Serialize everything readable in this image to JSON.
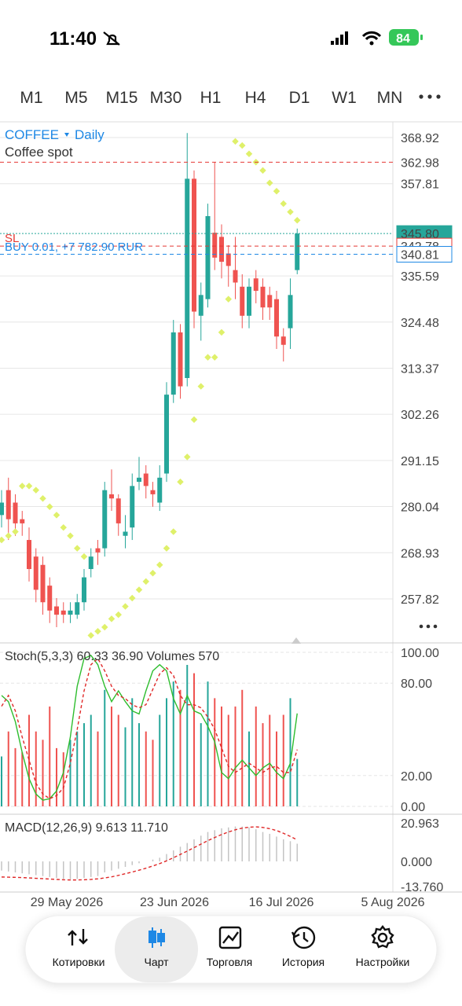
{
  "status_bar": {
    "time": "11:40",
    "battery": "84"
  },
  "timeframes": [
    "M1",
    "M5",
    "M15",
    "M30",
    "H1",
    "H4",
    "D1",
    "W1",
    "MN"
  ],
  "active_timeframe": "D1",
  "chart_data": [
    {
      "type": "candlestick",
      "symbol": "COFFEE",
      "period": "Daily",
      "description": "Coffee spot",
      "up_color": "#26a69a",
      "down_color": "#ef5350",
      "open": [
        278,
        284,
        281,
        277,
        272,
        268,
        266,
        261,
        256,
        255,
        254,
        254,
        257,
        265,
        270,
        270,
        283,
        282,
        273,
        275,
        286,
        288,
        284,
        281,
        288,
        307,
        322,
        311,
        359,
        326,
        330,
        346,
        345,
        341,
        337,
        333,
        326,
        335,
        333,
        331,
        330,
        321,
        323,
        337
      ],
      "high": [
        284,
        287,
        283,
        279,
        275,
        270,
        268,
        263,
        258,
        257,
        257,
        259,
        265,
        270,
        272,
        286,
        289,
        283,
        278,
        288,
        292,
        290,
        286,
        290,
        310,
        325,
        324,
        370,
        361,
        334,
        353,
        363,
        348,
        343,
        345,
        336,
        335,
        337,
        335,
        333,
        332,
        323,
        335,
        347
      ],
      "low": [
        275,
        272,
        273,
        273,
        262,
        257,
        254,
        252,
        251,
        252,
        252,
        253,
        255,
        263,
        266,
        268,
        279,
        273,
        270,
        272,
        284,
        282,
        280,
        279,
        286,
        305,
        306,
        309,
        323,
        320,
        328,
        337,
        335,
        333,
        330,
        323,
        323,
        329,
        325,
        325,
        318,
        315,
        318,
        336
      ],
      "close": [
        281,
        277,
        276,
        276,
        265,
        260,
        257,
        255,
        254,
        254,
        255,
        257,
        263,
        268,
        269,
        284,
        282,
        276,
        274,
        285,
        287,
        285,
        283,
        287,
        307,
        322,
        309,
        359,
        327,
        331,
        350,
        340,
        339,
        338,
        334,
        326,
        333,
        332,
        328,
        328,
        321,
        319,
        331,
        345.8
      ],
      "sar": {
        "color": "#dff06a",
        "values": [
          272,
          273,
          274,
          285,
          285,
          284,
          282,
          280,
          278,
          275,
          273,
          270,
          268,
          249,
          250,
          251,
          253,
          254,
          256,
          258,
          260,
          262,
          264,
          266,
          270,
          274,
          286,
          292,
          301,
          309,
          316,
          316,
          322,
          330,
          368,
          367,
          365,
          363,
          361,
          358,
          356,
          353,
          351,
          349
        ]
      },
      "ylim": [
        247.21,
        372.33
      ],
      "yticks": [
        368.92,
        357.81,
        335.59,
        324.48,
        313.37,
        302.26,
        291.15,
        280.04,
        268.93,
        257.82
      ],
      "grid": true,
      "price_lines": [
        {
          "price": 362.98,
          "color": "#e53935",
          "boxed": false
        },
        {
          "price": {
            "value": 345.8,
            "label": "345.80"
          },
          "color": "#26a69a",
          "boxed": true
        },
        {
          "price": 342.78,
          "color": "#e53935",
          "boxed": true
        },
        {
          "price": 340.81,
          "color": "#1e88e5",
          "boxed": true
        }
      ],
      "sl_text": "SL",
      "buy_text": "BUY 0.01, +7 782.90 RUR",
      "date_labels": [
        "29 May 2026",
        "23 Jun 2026",
        "16 Jul 2026",
        "5 Aug 2026"
      ]
    },
    {
      "type": "stochastic",
      "title": "Stoch(5,3,3)",
      "main_value": 60.33,
      "signal_value": {
        "value": 36.9,
        "label": "36.90"
      },
      "volumes_title": "Volumes",
      "volume_value": 570,
      "ylim": [
        -5.1,
        106.12
      ],
      "yticks": [
        {
          "value": 100,
          "label": "100.00"
        },
        {
          "value": 80,
          "label": "80.00"
        },
        {
          "value": 20,
          "label": "20.00"
        },
        {
          "value": 0,
          "label": "0.00"
        }
      ],
      "series": [
        {
          "name": "Main",
          "color": "#2ebd2e",
          "values": [
            72,
            68,
            55,
            35,
            18,
            8,
            4,
            5,
            10,
            22,
            45,
            78,
            96,
            98,
            92,
            78,
            68,
            75,
            68,
            62,
            60,
            75,
            88,
            92,
            88,
            70,
            60,
            72,
            62,
            60,
            52,
            42,
            22,
            18,
            25,
            30,
            25,
            20,
            25,
            28,
            22,
            18,
            28,
            60.33
          ]
        },
        {
          "name": "Signal",
          "color": "#e02828",
          "values": [
            65,
            72,
            62,
            45,
            30,
            15,
            8,
            5,
            7,
            12,
            28,
            50,
            75,
            92,
            96,
            88,
            78,
            72,
            70,
            66,
            64,
            66,
            76,
            86,
            90,
            85,
            72,
            66,
            66,
            64,
            58,
            50,
            38,
            26,
            22,
            25,
            28,
            25,
            22,
            25,
            26,
            22,
            22,
            36.9
          ]
        }
      ],
      "volumes": [
        600,
        900,
        700,
        650,
        1100,
        900,
        800,
        1200,
        700,
        650,
        800,
        900,
        1000,
        1100,
        900,
        1400,
        1200,
        1100,
        950,
        1300,
        1000,
        900,
        800,
        1100,
        1300,
        1500,
        1400,
        1700,
        1600,
        1000,
        1500,
        1300,
        1200,
        1100,
        1200,
        1400,
        900,
        1200,
        1000,
        1100,
        900,
        1100,
        1300,
        570
      ]
    },
    {
      "type": "macd",
      "title": "MACD(12,26,9)",
      "macd_value": 9.613,
      "signal_value": {
        "value": 11.71,
        "label": "11.710"
      },
      "ylim": [
        -16.68,
        25.67
      ],
      "yticks": [
        20.963,
        {
          "value": 0,
          "label": "0.000"
        },
        {
          "value": -13.76,
          "label": "-13.760"
        }
      ],
      "histogram": {
        "color": "#c4c4c4",
        "values": [
          -5,
          -5.5,
          -6,
          -6.5,
          -7,
          -7.5,
          -8,
          -8.5,
          -9,
          -9.5,
          -9.7,
          -9.5,
          -9,
          -8.5,
          -8,
          -6,
          -5,
          -4,
          -3,
          -2,
          -1,
          0,
          1,
          2,
          4,
          6,
          8,
          10,
          12,
          14,
          16,
          17,
          18,
          18.5,
          19,
          19,
          18.5,
          17.5,
          16,
          15,
          13.5,
          12,
          11,
          9.613
        ]
      },
      "signal": {
        "color": "#e02828",
        "values": [
          -8.5,
          -8.6,
          -8.7,
          -8.8,
          -9,
          -9.2,
          -9.4,
          -9.6,
          -9.8,
          -10,
          -10.1,
          -10.1,
          -10,
          -9.8,
          -9.5,
          -9,
          -8.4,
          -7.6,
          -6.7,
          -5.8,
          -4.8,
          -3.7,
          -2.5,
          -1.2,
          0.3,
          2,
          3.8,
          5.6,
          7.5,
          9.4,
          11.3,
          13,
          14.6,
          16,
          17.2,
          18.1,
          18.6,
          18.8,
          18.5,
          17.8,
          16.8,
          15.3,
          13.6,
          11.71
        ]
      }
    }
  ],
  "tabs": [
    {
      "label": "Котировки"
    },
    {
      "label": "Чарт"
    },
    {
      "label": "Торговля"
    },
    {
      "label": "История"
    },
    {
      "label": "Настройки"
    }
  ],
  "active_tab": "Чарт"
}
